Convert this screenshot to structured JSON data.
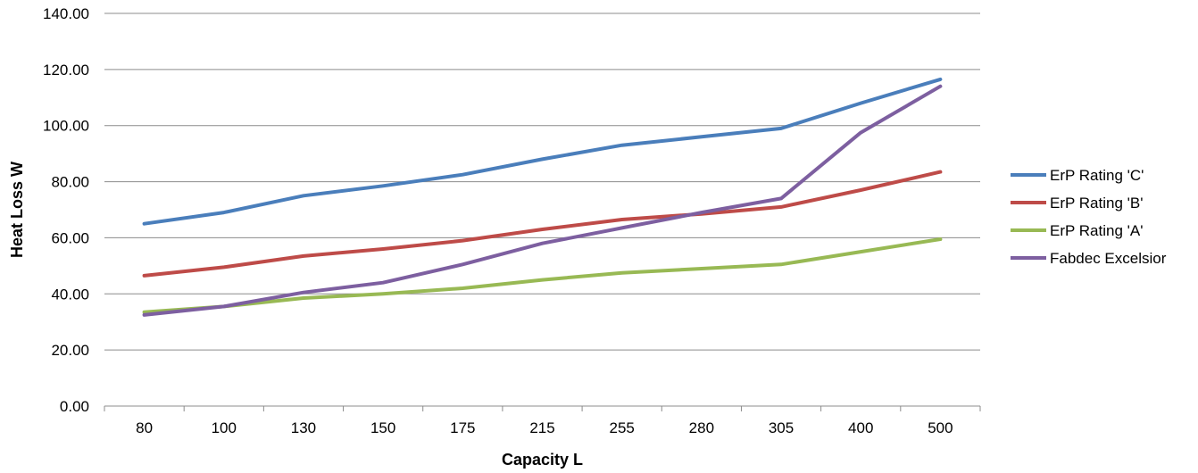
{
  "chart_data": {
    "type": "line",
    "xlabel": "Capacity L",
    "ylabel": "Heat Loss W",
    "ylim": [
      0,
      140
    ],
    "yticks": [
      "0.00",
      "20.00",
      "40.00",
      "60.00",
      "80.00",
      "100.00",
      "120.00",
      "140.00"
    ],
    "categories": [
      "80",
      "100",
      "130",
      "150",
      "175",
      "215",
      "255",
      "280",
      "305",
      "400",
      "500"
    ],
    "grid": "horizontal",
    "legend_position": "right",
    "series": [
      {
        "name": "ErP Rating 'C'",
        "color": "#4A7EBB",
        "values": [
          65,
          69,
          75,
          78.5,
          82.5,
          88,
          93,
          96,
          99,
          108,
          116.5
        ]
      },
      {
        "name": "ErP Rating 'B'",
        "color": "#BE4B48",
        "values": [
          46.5,
          49.5,
          53.5,
          56,
          59,
          63,
          66.5,
          68.5,
          71,
          77,
          83.5
        ]
      },
      {
        "name": "ErP Rating 'A'",
        "color": "#98B954",
        "values": [
          33.5,
          35.5,
          38.5,
          40,
          42,
          45,
          47.5,
          49,
          50.5,
          55,
          59.5
        ]
      },
      {
        "name": "Fabdec Excelsior",
        "color": "#7D5FA0",
        "values": [
          32.5,
          35.5,
          40.5,
          44,
          50.5,
          58,
          63.5,
          69,
          74,
          97.5,
          114
        ]
      }
    ]
  }
}
